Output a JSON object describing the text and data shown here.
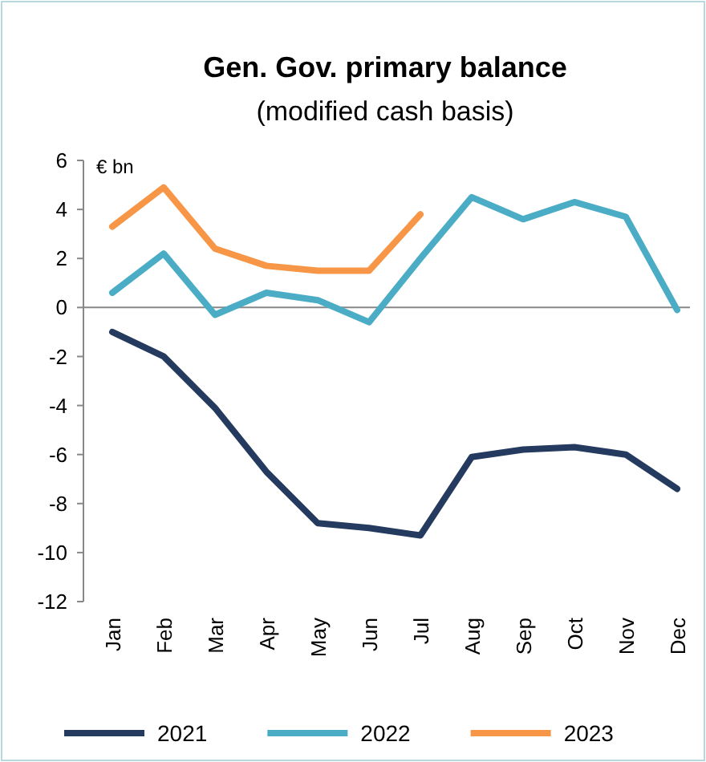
{
  "chart_data": {
    "type": "line",
    "title": "Gen. Gov. primary balance",
    "subtitle": "(modified cash basis)",
    "ylabel": "€ bn",
    "categories": [
      "Jan",
      "Feb",
      "Mar",
      "Apr",
      "May",
      "Jun",
      "Jul",
      "Aug",
      "Sep",
      "Oct",
      "Nov",
      "Dec"
    ],
    "series": [
      {
        "name": "2021",
        "color": "#243a5e",
        "values": [
          -1.0,
          -2.0,
          -4.1,
          -6.7,
          -8.8,
          -9.0,
          -9.3,
          -6.1,
          -5.8,
          -5.7,
          -6.0,
          -7.4
        ]
      },
      {
        "name": "2022",
        "color": "#4bacc6",
        "values": [
          0.6,
          2.2,
          -0.3,
          0.6,
          0.3,
          -0.6,
          2.0,
          4.5,
          3.6,
          4.3,
          3.7,
          -0.1
        ]
      },
      {
        "name": "2023",
        "color": "#f79646",
        "values": [
          3.3,
          4.9,
          2.4,
          1.7,
          1.5,
          1.5,
          3.8,
          null,
          null,
          null,
          null,
          null
        ]
      }
    ],
    "ylim": [
      -12,
      6
    ],
    "yticks": [
      -12,
      -10,
      -8,
      -6,
      -4,
      -2,
      0,
      2,
      4,
      6
    ],
    "ref_lines": [
      {
        "axis": "y",
        "value": 0,
        "color": "#888888"
      }
    ],
    "legend": "bottom",
    "marker": "none",
    "line_style": "solid"
  }
}
